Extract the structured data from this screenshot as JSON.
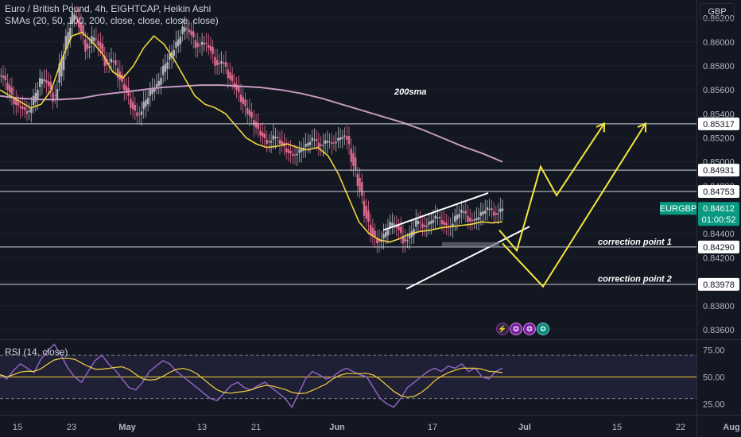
{
  "header": {
    "title": "Euro / British Pound, 4h, EIGHTCAP, Heikin Ashi",
    "indicators": "SMAs (20, 50, 100, 200, close, close, close, close)"
  },
  "currency_label": "GBP",
  "rsi_label": "RSI (14, close)",
  "colors": {
    "background": "#131722",
    "grid": "#1e222d",
    "bull": "#b2b5be",
    "bear": "#e06a8f",
    "sma_yellow": "#f2d33f",
    "sma_200": "#c79ac1",
    "rsi": "#8e64c0",
    "rsi_ma": "#f2d33f",
    "arrow": "#f4e63a",
    "channel": "#ffffff",
    "level_line": "#d1d4dc",
    "badge_green": "#089981"
  },
  "icons": [
    "lightning-icon",
    "dividend-icon",
    "dividend-icon",
    "earnings-icon"
  ],
  "chart_data": {
    "type": "candlestick",
    "price_axis_ticks": [
      0.862,
      0.86,
      0.858,
      0.856,
      0.854,
      0.852,
      0.85,
      0.848,
      0.846,
      0.844,
      0.842,
      0.84,
      0.838,
      0.836
    ],
    "price_axis_tick_labels": [
      "0.86200",
      "0.86000",
      "0.85800",
      "0.85600",
      "0.85400",
      "0.85200",
      "0.85000",
      "0.84800",
      "0.84600",
      "0.84400",
      "0.84200",
      "0.84000",
      "0.83800",
      "0.83600"
    ],
    "price_range": [
      0.8352,
      0.8635
    ],
    "x_tick_labels": [
      "15",
      "23",
      "May",
      "13",
      "21",
      "Jun",
      "17",
      "Jul",
      "15",
      "22",
      "Aug"
    ],
    "horizontal_levels": [
      {
        "value": 0.85317,
        "label": "0.85317"
      },
      {
        "value": 0.84931,
        "label": "0.84931"
      },
      {
        "value": 0.84753,
        "label": "0.84753"
      },
      {
        "value": 0.8429,
        "label": "0.84290"
      },
      {
        "value": 0.83978,
        "label": "0.83978"
      }
    ],
    "current_price": {
      "symbol": "EURGBP",
      "value": "0.84612",
      "countdown": "01:00:52",
      "numeric": 0.84612
    },
    "annotations": [
      {
        "text": "200sma",
        "at_price": 0.8556
      },
      {
        "text": "correction point 1",
        "at_price": 0.8431
      },
      {
        "text": "correction point 2",
        "at_price": 0.84
      }
    ],
    "price_path": [
      0.8572,
      0.856,
      0.8548,
      0.8545,
      0.854,
      0.8555,
      0.857,
      0.8566,
      0.855,
      0.8582,
      0.8605,
      0.8625,
      0.8612,
      0.8592,
      0.8605,
      0.8597,
      0.858,
      0.8586,
      0.857,
      0.856,
      0.8545,
      0.8538,
      0.855,
      0.856,
      0.8565,
      0.858,
      0.859,
      0.86,
      0.8613,
      0.8608,
      0.8595,
      0.86,
      0.8595,
      0.858,
      0.8584,
      0.857,
      0.8562,
      0.855,
      0.854,
      0.853,
      0.8522,
      0.8515,
      0.8522,
      0.8515,
      0.8508,
      0.8505,
      0.851,
      0.8515,
      0.852,
      0.8512,
      0.8518,
      0.8515,
      0.852,
      0.8522,
      0.85,
      0.848,
      0.8455,
      0.844,
      0.8432,
      0.844,
      0.845,
      0.8445,
      0.8432,
      0.844,
      0.8452,
      0.8445,
      0.845,
      0.8455,
      0.8448,
      0.8445,
      0.8455,
      0.846,
      0.845,
      0.8452,
      0.8458,
      0.8462,
      0.8455,
      0.8461
    ],
    "sma_fast": [
      0.856,
      0.8555,
      0.855,
      0.8545,
      0.8548,
      0.856,
      0.8585,
      0.8605,
      0.8608,
      0.86,
      0.859,
      0.8575,
      0.857,
      0.858,
      0.8595,
      0.8605,
      0.8598,
      0.8585,
      0.857,
      0.8555,
      0.8548,
      0.8545,
      0.854,
      0.853,
      0.852,
      0.8515,
      0.8512,
      0.8513,
      0.8515,
      0.8512,
      0.851,
      0.8512,
      0.8505,
      0.849,
      0.847,
      0.845,
      0.844,
      0.8435,
      0.8433,
      0.8436,
      0.844,
      0.8442,
      0.8443,
      0.8445,
      0.8446,
      0.8447,
      0.8448,
      0.845,
      0.8449,
      0.845
    ],
    "sma_200": [
      0.8555,
      0.8553,
      0.8552,
      0.8552,
      0.8553,
      0.8556,
      0.8558,
      0.856,
      0.8562,
      0.8563,
      0.8564,
      0.8564,
      0.8563,
      0.8562,
      0.856,
      0.8557,
      0.8553,
      0.8548,
      0.8543,
      0.8538,
      0.8533,
      0.8527,
      0.852,
      0.8513,
      0.8507,
      0.85
    ],
    "projection": {
      "arrow_1": [
        0.8443,
        0.8426,
        0.8496,
        0.8472,
        0.8532
      ],
      "arrow_2": [
        0.8432,
        0.8396,
        0.8532
      ]
    },
    "rsi": {
      "ticks": [
        75.0,
        50.0,
        25.0
      ],
      "tick_labels": [
        "75.00",
        "50.00",
        "25.00"
      ],
      "range": [
        15,
        84
      ],
      "band": [
        30,
        70
      ],
      "values": [
        52,
        48,
        56,
        62,
        58,
        54,
        66,
        74,
        80,
        70,
        58,
        50,
        45,
        55,
        65,
        70,
        62,
        56,
        48,
        40,
        38,
        45,
        55,
        60,
        65,
        62,
        55,
        50,
        45,
        40,
        35,
        30,
        28,
        35,
        42,
        45,
        40,
        38,
        42,
        45,
        40,
        35,
        30,
        22,
        35,
        48,
        55,
        52,
        48,
        50,
        55,
        58,
        55,
        52,
        50,
        40,
        30,
        25,
        22,
        30,
        40,
        45,
        50,
        55,
        58,
        55,
        60,
        58,
        62,
        55,
        58,
        50,
        48,
        55,
        58
      ]
    }
  }
}
